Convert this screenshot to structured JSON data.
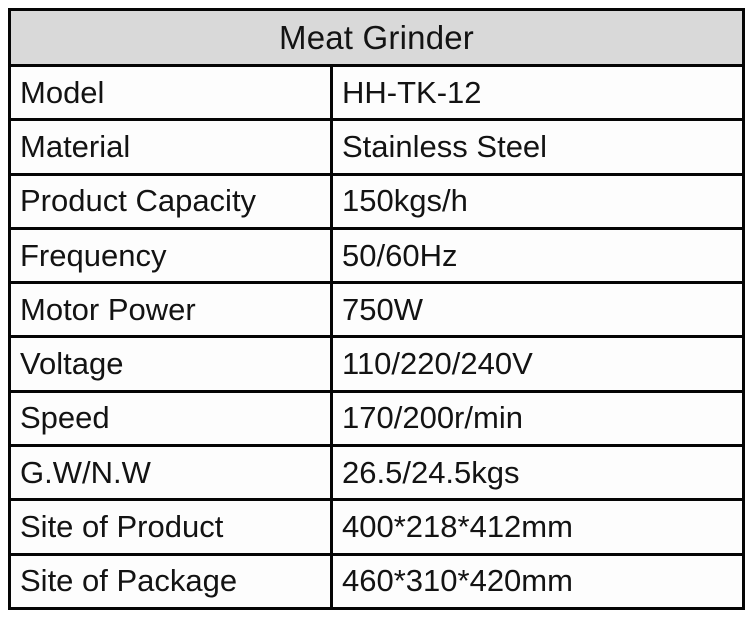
{
  "title": "Meat Grinder",
  "colors": {
    "header_bg": "#d9d9d9",
    "border": "#050505",
    "text": "#131313",
    "cell_bg": "#fdfdfd"
  },
  "rows": [
    {
      "label": "Model",
      "value": "HH-TK-12"
    },
    {
      "label": "Material",
      "value": "Stainless Steel"
    },
    {
      "label": "Product Capacity",
      "value": "150kgs/h"
    },
    {
      "label": "Frequency",
      "value": "50/60Hz"
    },
    {
      "label": "Motor Power",
      "value": "750W"
    },
    {
      "label": "Voltage",
      "value": "110/220/240V"
    },
    {
      "label": "Speed",
      "value": "170/200r/min"
    },
    {
      "label": "G.W/N.W",
      "value": "26.5/24.5kgs"
    },
    {
      "label": "Site of Product",
      "value": "400*218*412mm"
    },
    {
      "label": "Site of Package",
      "value": "460*310*420mm"
    }
  ]
}
